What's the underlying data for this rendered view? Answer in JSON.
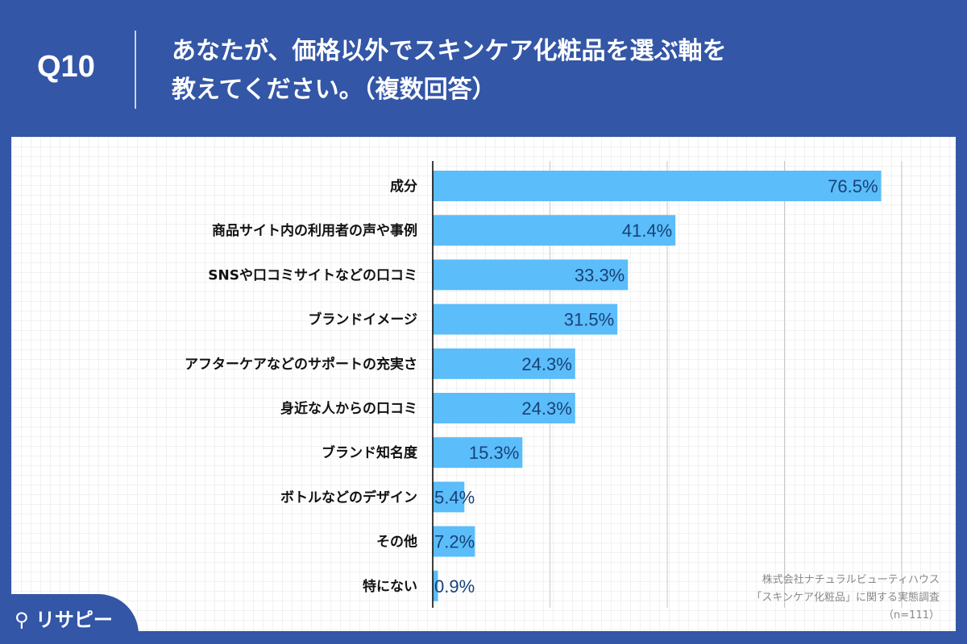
{
  "header": {
    "question": "Q10",
    "title_line1": "あなたが、価格以外でスキンケア化粧品を選ぶ軸を",
    "title_line2": "教えてください。（複数回答）"
  },
  "chart_data": {
    "type": "bar",
    "orientation": "horizontal",
    "categories": [
      "成分",
      "商品サイト内の利用者の声や事例",
      "SNSや口コミサイトなどの口コミ",
      "ブランドイメージ",
      "アフターケアなどのサポートの充実さ",
      "身近な人からの口コミ",
      "ブランド知名度",
      "ボトルなどのデザイン",
      "その他",
      "特にない"
    ],
    "values": [
      76.5,
      41.4,
      33.3,
      31.5,
      24.3,
      24.3,
      15.3,
      5.4,
      7.2,
      0.9
    ],
    "value_labels": [
      "76.5%",
      "41.4%",
      "33.3%",
      "31.5%",
      "24.3%",
      "24.3%",
      "15.3%",
      "5.4%",
      "7.2%",
      "0.9%"
    ],
    "xlim": [
      0,
      80
    ],
    "gridlines": [
      20,
      40,
      60,
      80
    ],
    "grid": true,
    "bar_color": "#5bbdf9",
    "label_color": "#17427a"
  },
  "credit": {
    "line1": "株式会社ナチュラルビューティハウス",
    "line2": "「スキンケア化粧品」に関する実態調査",
    "line3": "（n=111）"
  },
  "logo": {
    "text": "リサピー"
  },
  "colors": {
    "background": "#3356a6"
  }
}
